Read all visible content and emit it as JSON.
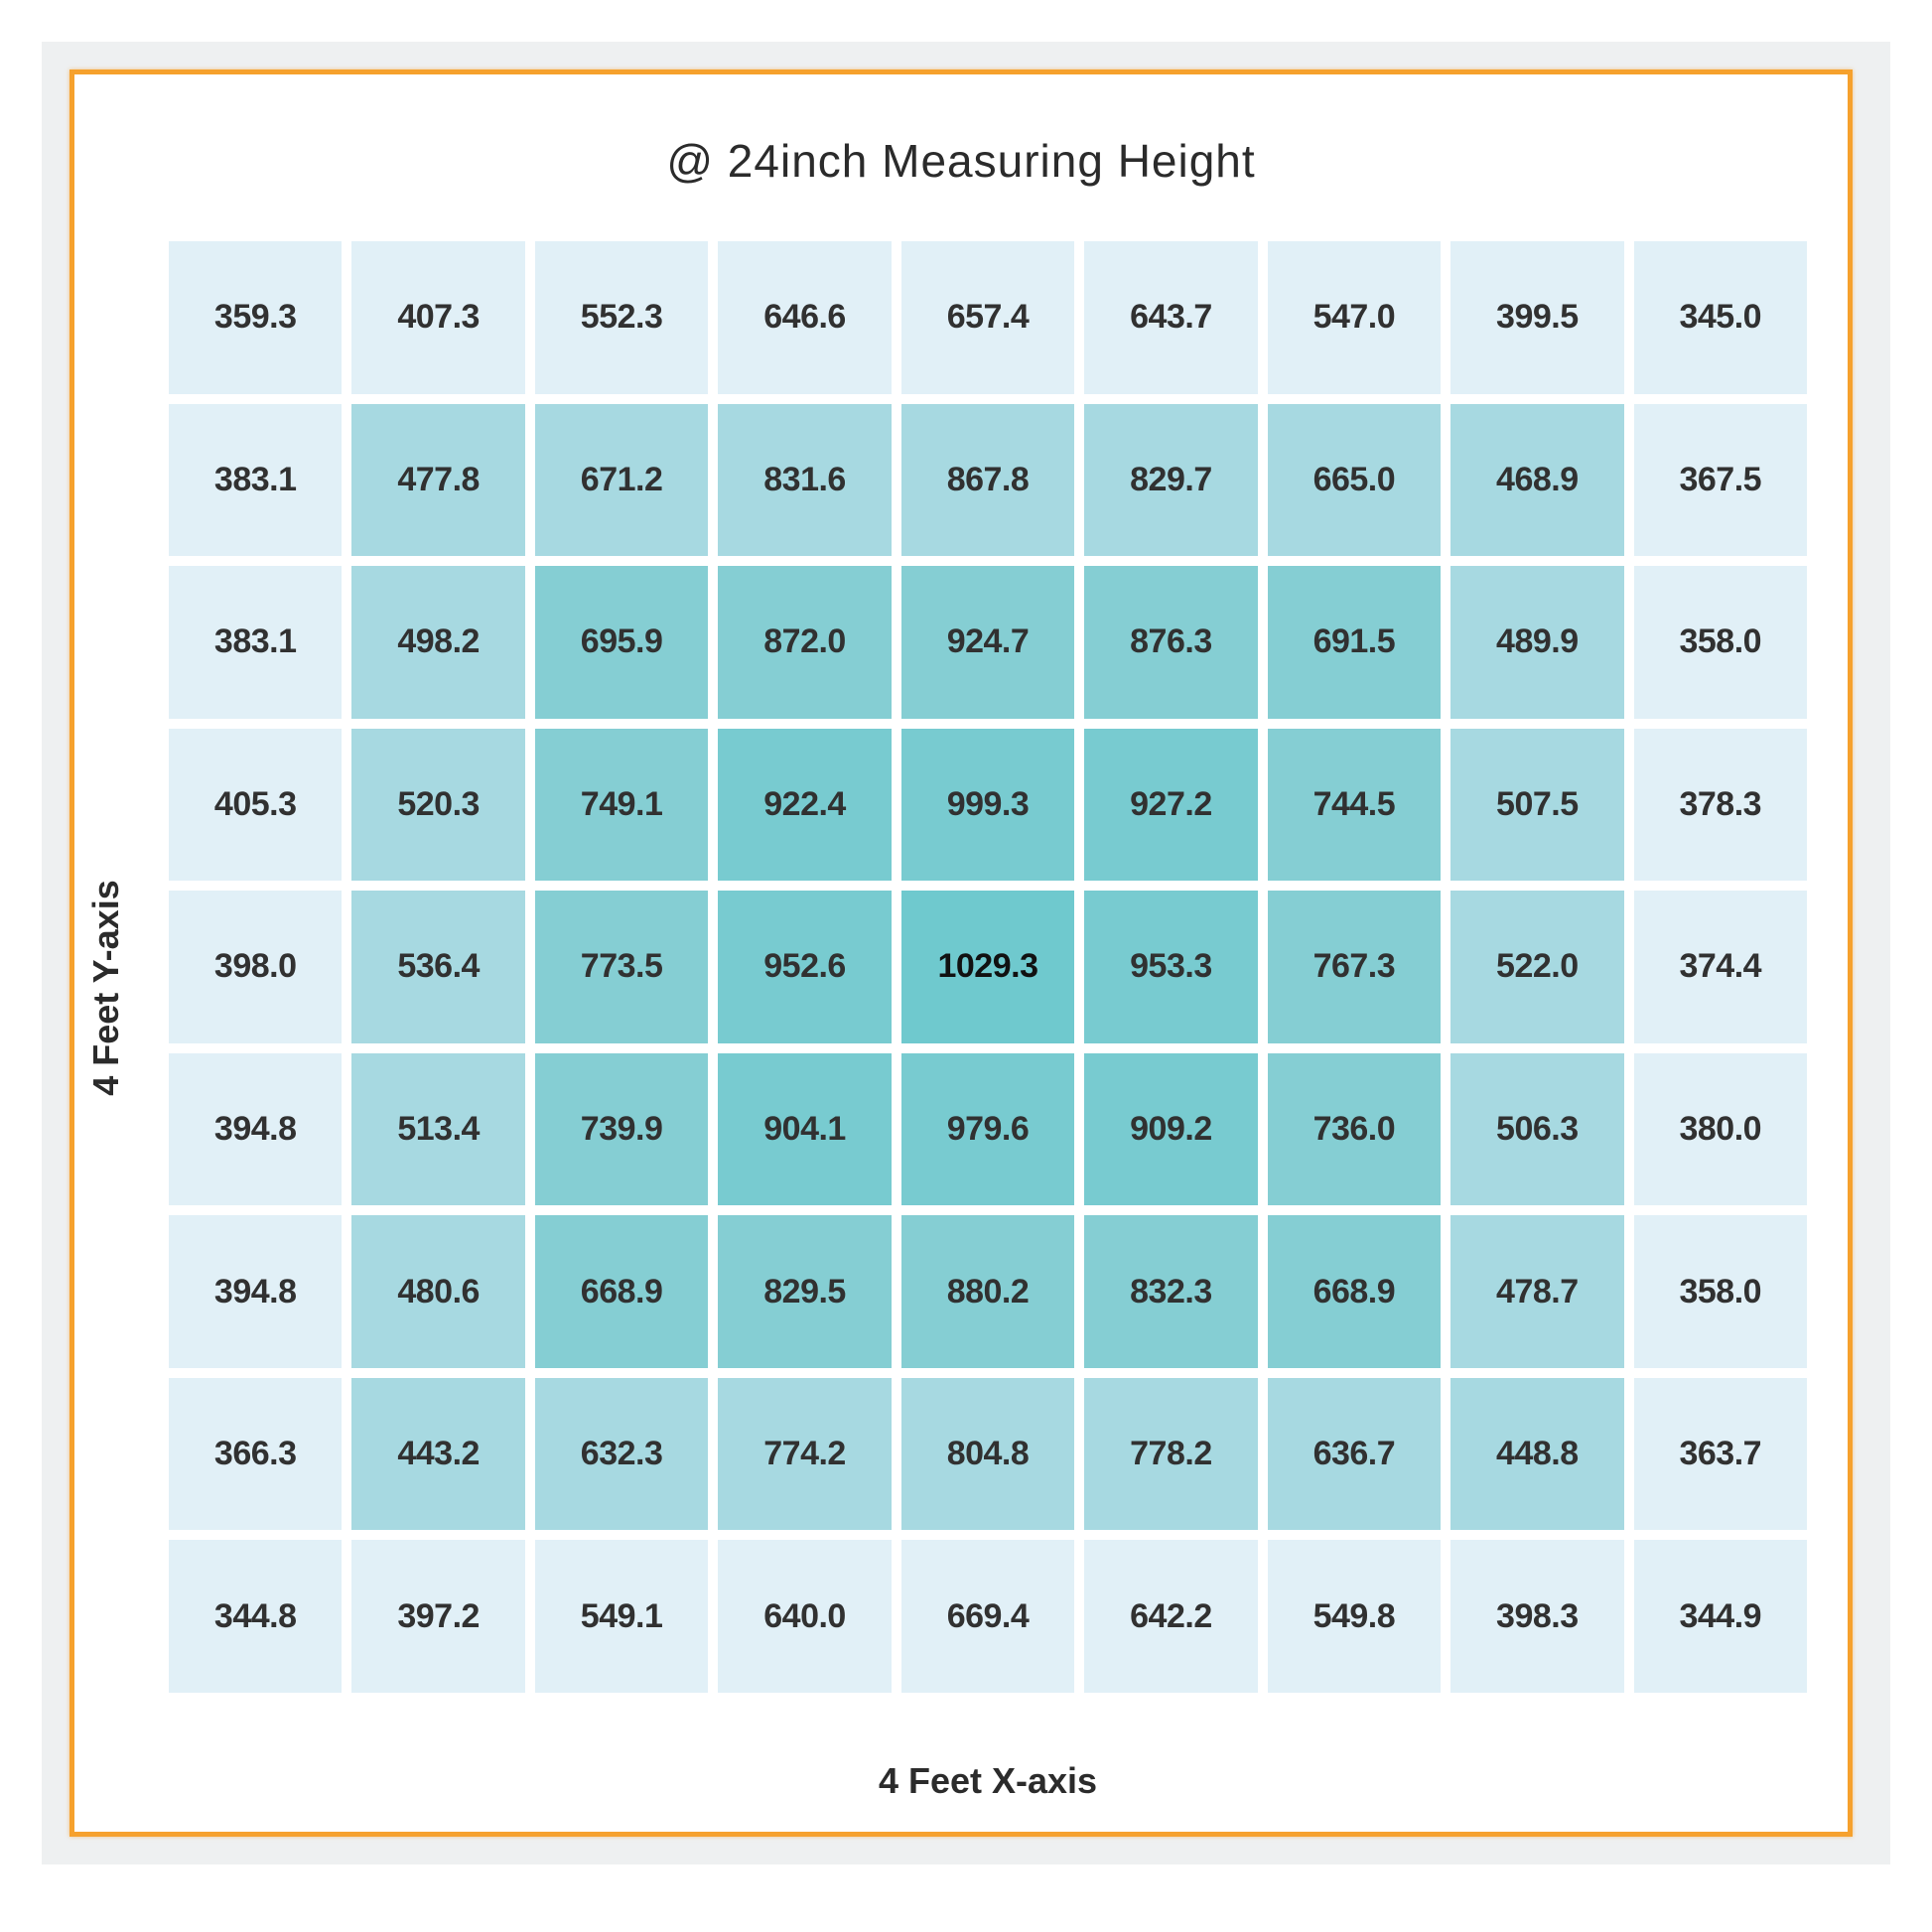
{
  "page": {
    "background": "#ffffff",
    "panel_color": "#eef0f1",
    "box_border_color": "#f6a12d",
    "box_fill": "#ffffff"
  },
  "chart_data": {
    "type": "heatmap",
    "title": "@ 24inch Measuring Height",
    "xlabel": "4 Feet X-axis",
    "ylabel": "4 Feet Y-axis",
    "rows": 9,
    "cols": 9,
    "values": [
      [
        359.3,
        407.3,
        552.3,
        646.6,
        657.4,
        643.7,
        547.0,
        399.5,
        345.0
      ],
      [
        383.1,
        477.8,
        671.2,
        831.6,
        867.8,
        829.7,
        665.0,
        468.9,
        367.5
      ],
      [
        383.1,
        498.2,
        695.9,
        872.0,
        924.7,
        876.3,
        691.5,
        489.9,
        358.0
      ],
      [
        405.3,
        520.3,
        749.1,
        922.4,
        999.3,
        927.2,
        744.5,
        507.5,
        378.3
      ],
      [
        398.0,
        536.4,
        773.5,
        952.6,
        1029.3,
        953.3,
        767.3,
        522.0,
        374.4
      ],
      [
        394.8,
        513.4,
        739.9,
        904.1,
        979.6,
        909.2,
        736.0,
        506.3,
        380.0
      ],
      [
        394.8,
        480.6,
        668.9,
        829.5,
        880.2,
        832.3,
        668.9,
        478.7,
        358.0
      ],
      [
        366.3,
        443.2,
        632.3,
        774.2,
        804.8,
        778.2,
        636.7,
        448.8,
        363.7
      ],
      [
        344.8,
        397.2,
        549.1,
        640.0,
        669.4,
        642.2,
        549.8,
        398.3,
        344.9
      ]
    ],
    "value_decimals": 1,
    "min_value": 344.8,
    "max_value": 1029.3,
    "max_value_bold": true,
    "grid_on": false,
    "legend": "none",
    "cell_color_mode": "concentric-rings (ring = min(row, col, 8-row, 8-col))",
    "ring_palette": [
      "#e1f0f7",
      "#a7d9e1",
      "#85ced3",
      "#78cbd0",
      "#6fc9ce"
    ],
    "cell_text_color": "#313131",
    "gap_color": "#ffffff"
  }
}
